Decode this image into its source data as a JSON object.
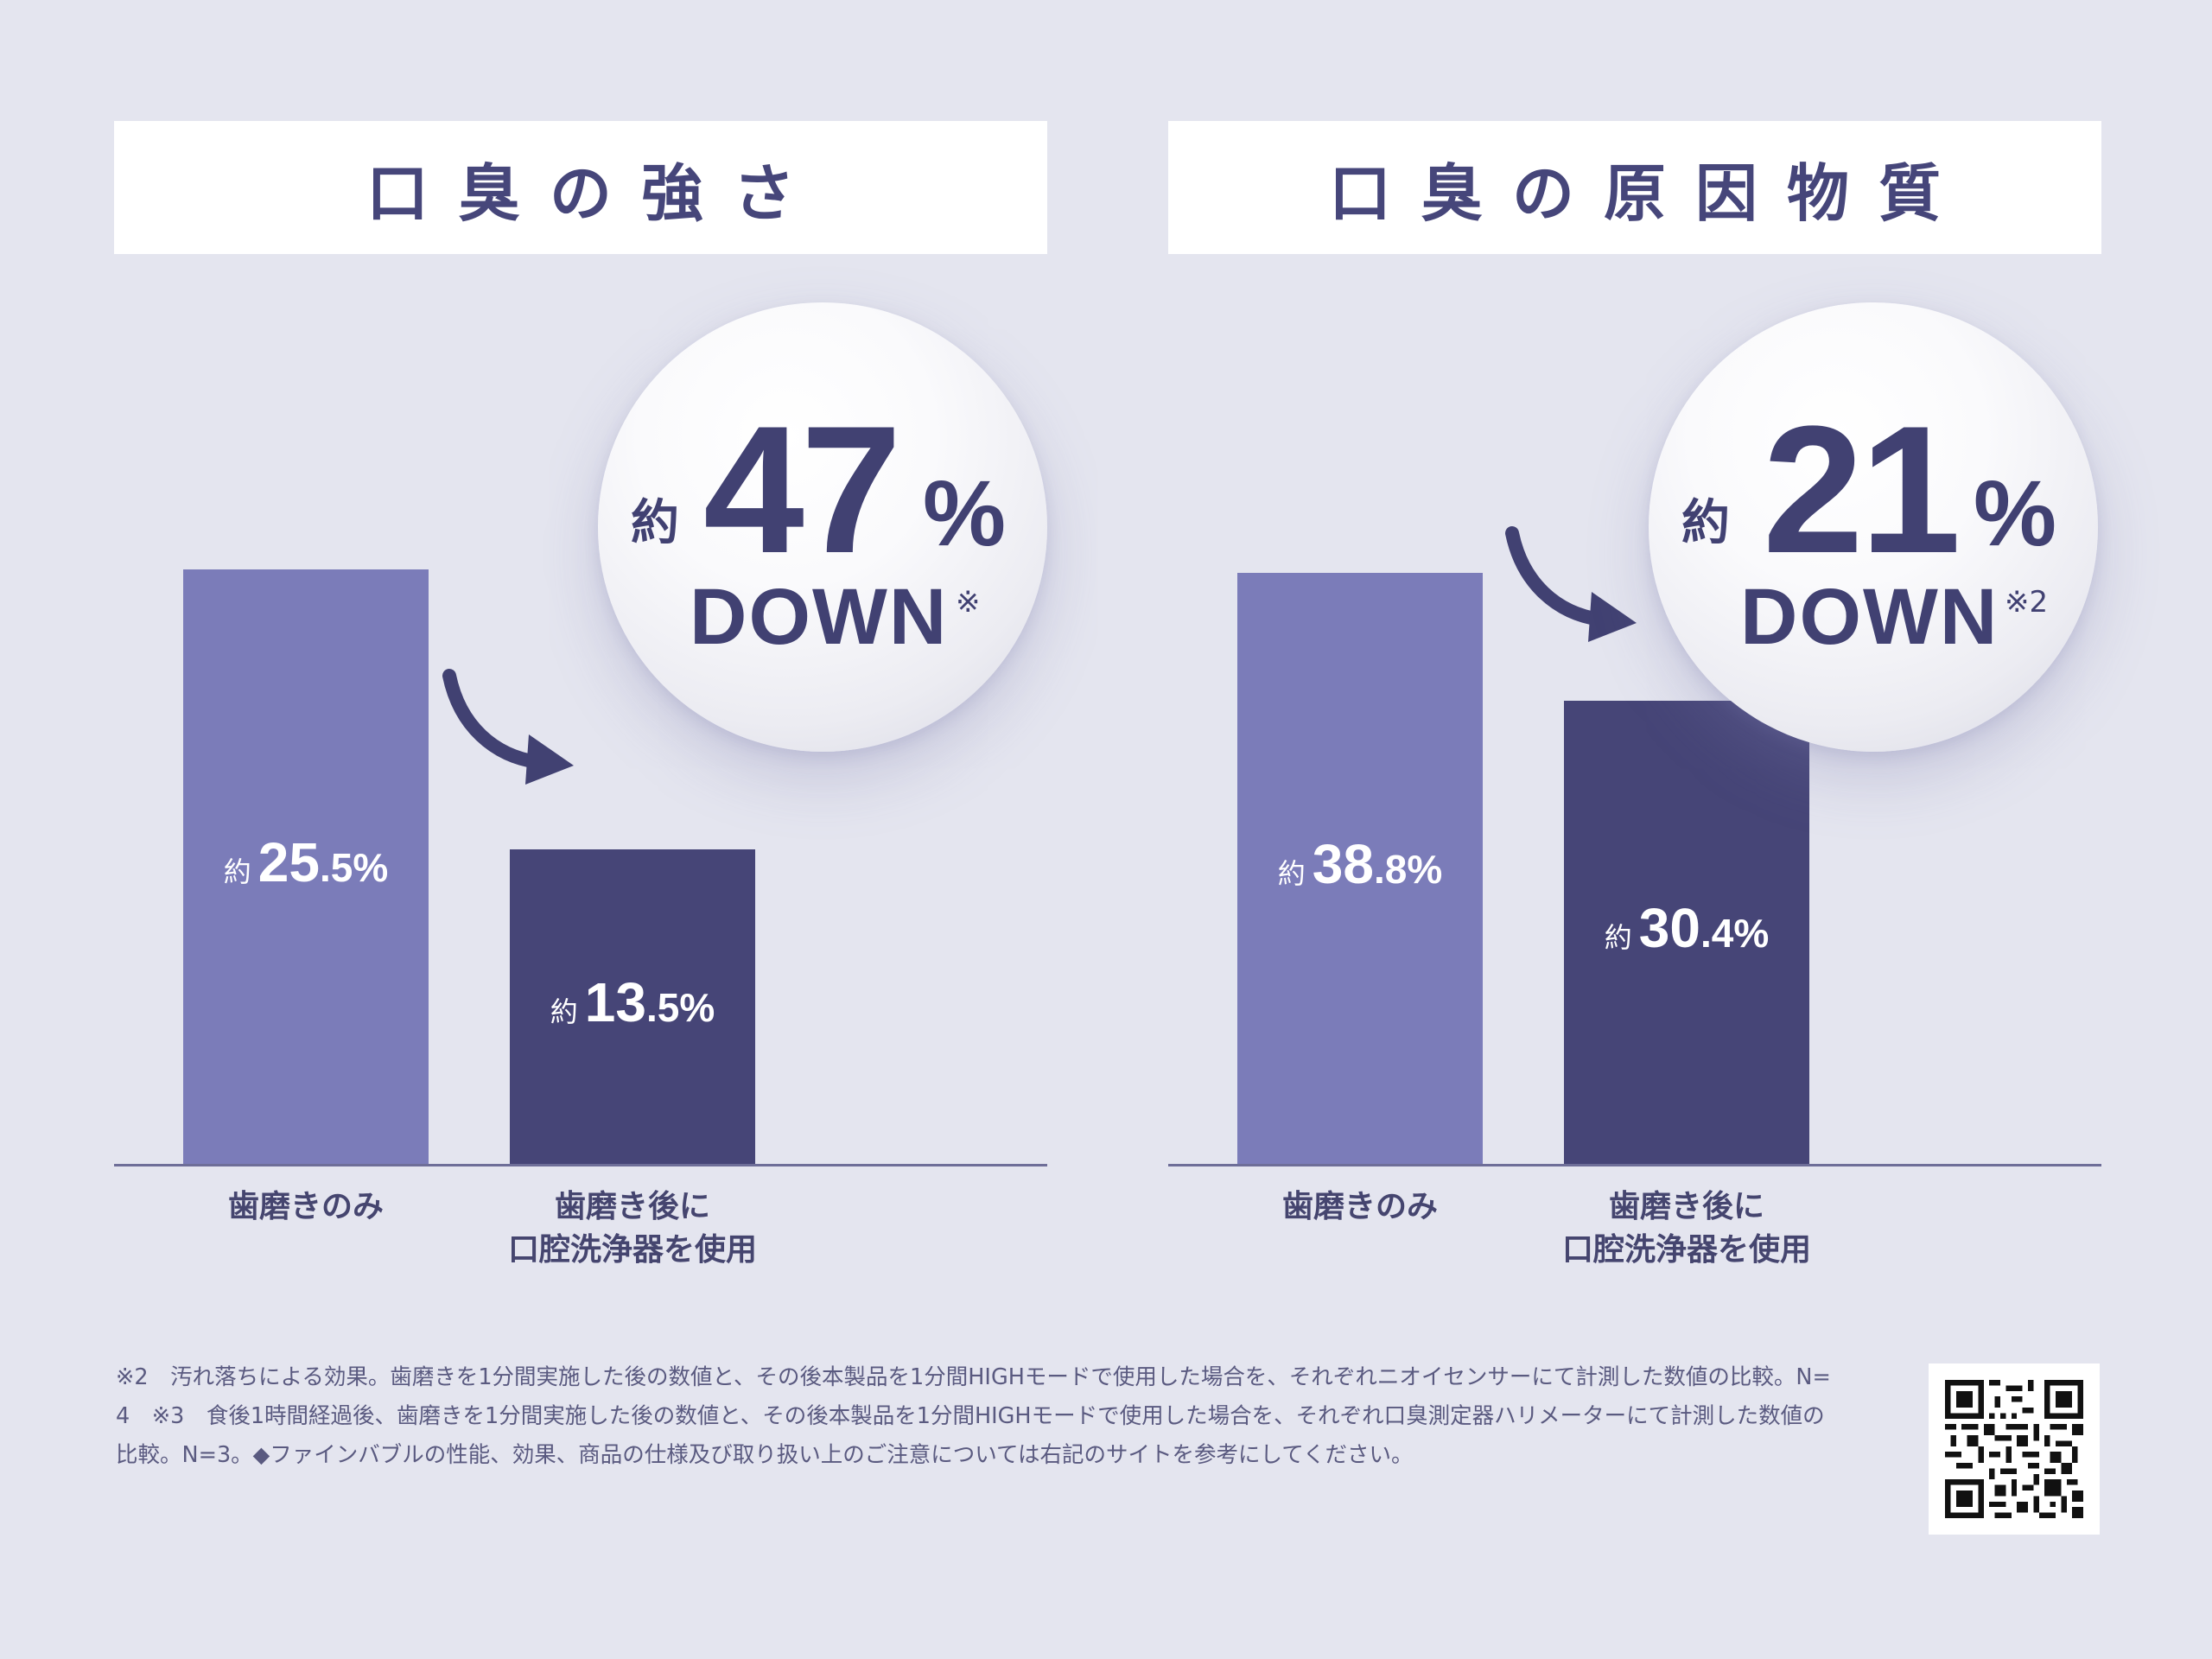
{
  "chart_data": [
    {
      "type": "bar",
      "title": "口臭の強さ",
      "categories": [
        "歯磨きのみ",
        "歯磨き後に口腔洗浄器を使用"
      ],
      "category_lines": [
        [
          "歯磨きのみ"
        ],
        [
          "歯磨き後に",
          "口腔洗浄器を使用"
        ]
      ],
      "values": [
        25.5,
        13.5
      ],
      "unit": "%",
      "value_prefix": "約",
      "value_labels": [
        {
          "prefix": "約",
          "int": "25",
          "dec": ".5%"
        },
        {
          "prefix": "約",
          "int": "13",
          "dec": ".5%"
        }
      ],
      "ylim": [
        0,
        37.5
      ],
      "badge": {
        "approx": "約",
        "number": "47",
        "sign": "%",
        "down": "DOWN",
        "note": "※"
      },
      "colors": {
        "before": "#7b7cb9",
        "after": "#464577"
      }
    },
    {
      "type": "bar",
      "title": "口臭の原因物質",
      "categories": [
        "歯磨きのみ",
        "歯磨き後に口腔洗浄器を使用"
      ],
      "category_lines": [
        [
          "歯磨きのみ"
        ],
        [
          "歯磨き後に",
          "口腔洗浄器を使用"
        ]
      ],
      "values": [
        38.8,
        30.4
      ],
      "unit": "%",
      "value_prefix": "約",
      "value_labels": [
        {
          "prefix": "約",
          "int": "38",
          "dec": ".8%"
        },
        {
          "prefix": "約",
          "int": "30",
          "dec": ".4%"
        }
      ],
      "ylim": [
        0,
        57.4
      ],
      "badge": {
        "approx": "約",
        "number": "21",
        "sign": "%",
        "down": "DOWN",
        "note": "※2"
      },
      "colors": {
        "before": "#7b7cb9",
        "after": "#464577"
      }
    }
  ],
  "footnote": {
    "line1": "※2　汚れ落ちによる効果。歯磨きを1分間実施した後の数値と、その後本製品を1分間HIGHモードで使用した場合を、それぞれニオイセンサーにて計測した数値の比較。N=",
    "line2": "4　※3　食後1時間経過後、歯磨きを1分間実施した後の数値と、その後本製品を1分間HIGHモードで使用した場合を、それぞれ口臭測定器ハリメーターにて計測した数値の",
    "line3": "比較。N=3。◆ファインバブルの性能、効果、商品の仕様及び取り扱い上のご注意については右記のサイトを参考にしてください。"
  },
  "qr_icon": "qr-code-icon"
}
